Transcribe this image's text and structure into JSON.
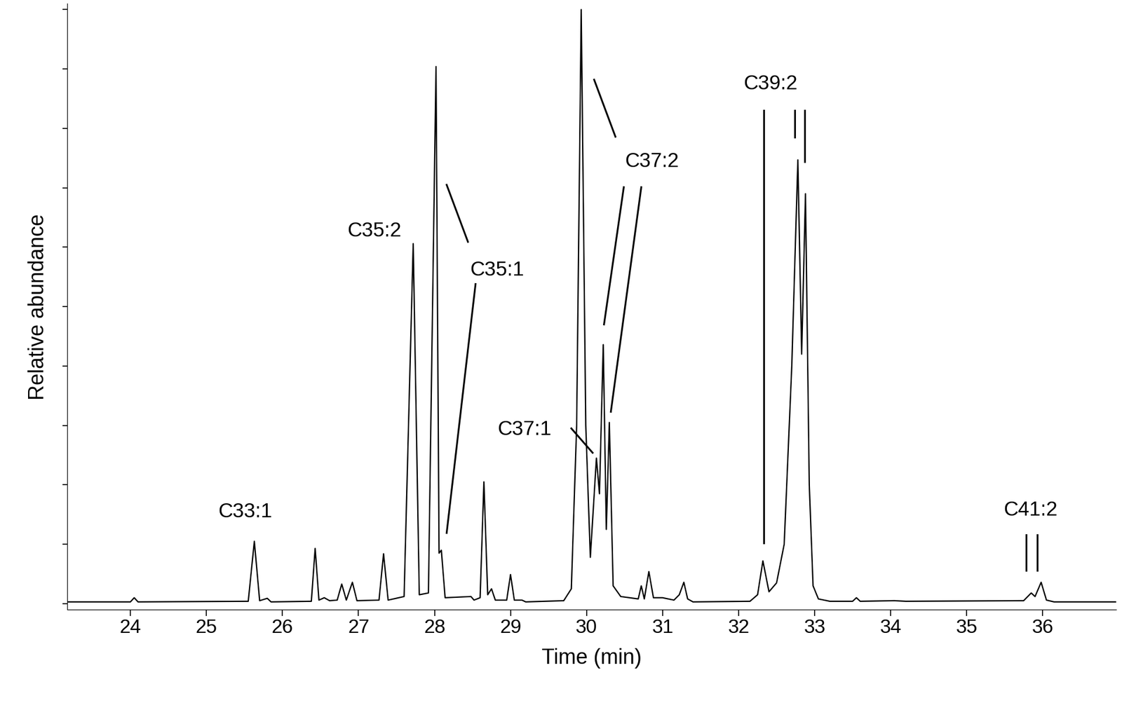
{
  "chart_data": {
    "type": "line",
    "xlabel": "Time (min)",
    "ylabel": "Relative abundance",
    "x": [
      23.17,
      24.0,
      24.05,
      24.1,
      25.55,
      25.63,
      25.7,
      25.8,
      25.85,
      26.38,
      26.43,
      26.48,
      26.55,
      26.62,
      26.72,
      26.78,
      26.84,
      26.92,
      26.98,
      27.27,
      27.33,
      27.39,
      27.6,
      27.72,
      27.8,
      27.92,
      28.02,
      28.06,
      28.09,
      28.14,
      28.48,
      28.52,
      28.6,
      28.65,
      28.7,
      28.75,
      28.8,
      28.95,
      29.0,
      29.05,
      29.15,
      29.2,
      29.7,
      29.8,
      29.87,
      29.93,
      29.99,
      30.05,
      30.13,
      30.17,
      30.22,
      30.26,
      30.3,
      30.35,
      30.45,
      30.68,
      30.72,
      30.76,
      30.82,
      30.88,
      31.0,
      31.15,
      31.22,
      31.28,
      31.33,
      31.4,
      32.15,
      32.25,
      32.32,
      32.4,
      32.5,
      32.6,
      32.7,
      32.78,
      32.83,
      32.88,
      32.93,
      32.98,
      33.05,
      33.2,
      33.5,
      33.55,
      33.6,
      34.05,
      34.2,
      35.75,
      35.85,
      35.9,
      35.98,
      36.05,
      36.15,
      36.97
    ],
    "series": [
      {
        "color": "#000000",
        "line_style": "solid",
        "values": [
          0.3,
          0.3,
          1.0,
          0.3,
          0.4,
          10.5,
          0.5,
          0.9,
          0.3,
          0.4,
          9.3,
          0.6,
          1.0,
          0.5,
          0.6,
          3.3,
          0.6,
          3.6,
          0.5,
          0.6,
          8.4,
          0.6,
          1.2,
          60.6,
          1.5,
          1.8,
          90.4,
          8.5,
          9.0,
          1.0,
          1.2,
          0.6,
          1.0,
          20.5,
          1.5,
          2.5,
          0.6,
          0.6,
          4.9,
          0.6,
          0.6,
          0.3,
          0.5,
          2.5,
          30.0,
          100.0,
          30.0,
          7.8,
          24.5,
          18.5,
          43.6,
          12.5,
          30.5,
          3.0,
          1.2,
          0.8,
          3.0,
          0.8,
          5.4,
          1.0,
          1.0,
          0.6,
          1.5,
          3.6,
          0.8,
          0.3,
          0.4,
          1.5,
          7.2,
          2.0,
          3.5,
          10.0,
          40.0,
          74.7,
          42.0,
          69.0,
          20.0,
          3.0,
          0.8,
          0.4,
          0.4,
          1.0,
          0.4,
          0.5,
          0.4,
          0.5,
          1.8,
          1.2,
          3.6,
          0.6,
          0.3,
          0.3
        ]
      }
    ],
    "xlim": [
      23.17,
      36.97
    ],
    "ylim": [
      -1,
      101
    ],
    "xticks": [
      24,
      25,
      26,
      27,
      28,
      29,
      30,
      31,
      32,
      33,
      34,
      35,
      36
    ],
    "yticks": [
      0,
      10,
      20,
      30,
      40,
      50,
      60,
      70,
      80,
      90,
      100
    ],
    "tick_labels": "x",
    "grid": false,
    "annotations": [
      {
        "text": "C33:1"
      },
      {
        "text": "C35:2"
      },
      {
        "text": "C35:1"
      },
      {
        "text": "C37:1"
      },
      {
        "text": "C37:2"
      },
      {
        "text": "C39:2"
      },
      {
        "text": "C41:2"
      }
    ]
  }
}
